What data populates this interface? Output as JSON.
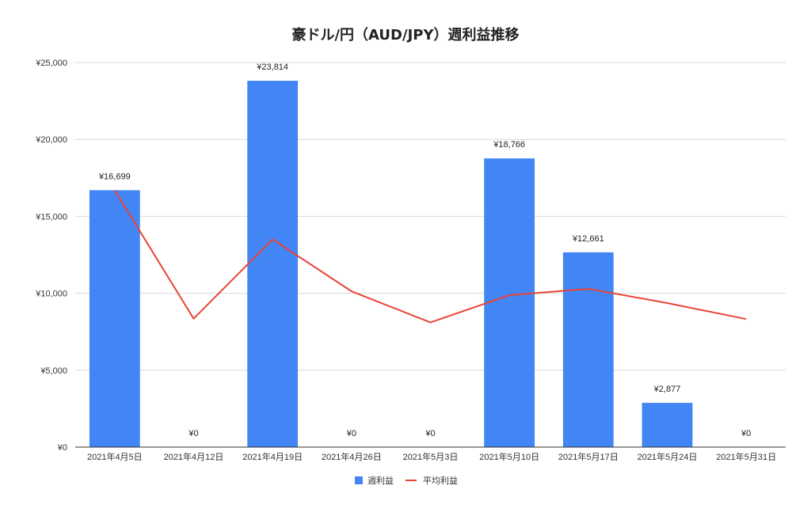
{
  "chart_data": {
    "type": "bar",
    "title": "豪ドル/円（AUD/JPY）週利益推移",
    "categories": [
      "2021年4月5日",
      "2021年4月12日",
      "2021年4月19日",
      "2021年4月26日",
      "2021年5月3日",
      "2021年5月10日",
      "2021年5月17日",
      "2021年5月24日",
      "2021年5月31日"
    ],
    "series": [
      {
        "name": "週利益",
        "type": "bar",
        "color": "#4285f4",
        "values": [
          16699,
          0,
          23814,
          0,
          0,
          18766,
          12661,
          2877,
          0
        ],
        "data_labels": [
          "¥16,699",
          "¥0",
          "¥23,814",
          "¥0",
          "¥0",
          "¥18,766",
          "¥12,661",
          "¥2,877",
          "¥0"
        ]
      },
      {
        "name": "平均利益",
        "type": "line",
        "color": "#ea4335",
        "values": [
          16699,
          8350,
          13504,
          10128,
          8103,
          9876,
          10291,
          9364,
          8324
        ]
      }
    ],
    "ylim": [
      0,
      25000
    ],
    "yticks": [
      0,
      5000,
      10000,
      15000,
      20000,
      25000
    ],
    "ytick_labels": [
      "¥0",
      "¥5,000",
      "¥10,000",
      "¥15,000",
      "¥20,000",
      "¥25,000"
    ],
    "xlabel": "",
    "ylabel": "",
    "grid": true,
    "legend_position": "bottom"
  }
}
